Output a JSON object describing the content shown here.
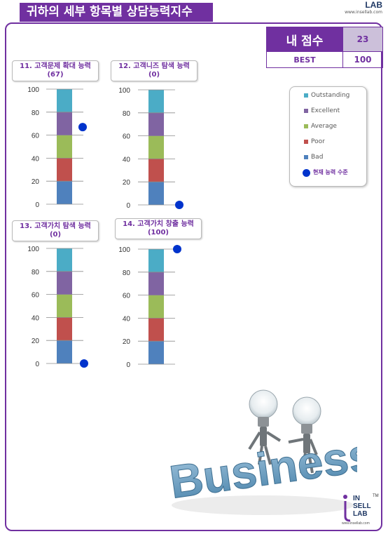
{
  "header": {
    "title": "귀하의 세부 항목별 상담능력지수"
  },
  "brand": {
    "name": "INSELL LAB",
    "lab_text": "LAB",
    "url": "www.insellab.com",
    "tm": "TM",
    "bottom_in": "IN",
    "bottom_sell": "SELL",
    "bottom_lab": "LAB",
    "bottom_url": "www.insellab.com"
  },
  "score": {
    "my_label": "내 점수",
    "my_value": "23",
    "best_label": "BEST",
    "best_value": "100"
  },
  "legend": {
    "items": [
      {
        "label": "Outstanding",
        "color": "#4bacc6"
      },
      {
        "label": "Excellent",
        "color": "#8064a2"
      },
      {
        "label": "Average",
        "color": "#9bbb59"
      },
      {
        "label": "Poor",
        "color": "#c0504d"
      },
      {
        "label": "Bad",
        "color": "#4f81bd"
      }
    ],
    "marker_label": "현재 능력 수준",
    "marker_color": "#0033cc"
  },
  "chart_data": [
    {
      "type": "bar",
      "title": "11. 고객문제 확대 능력",
      "subtitle": "(67)",
      "value": 67,
      "ylim": [
        0,
        100
      ],
      "ticks": [
        "100",
        "80",
        "60",
        "40",
        "20",
        "0"
      ]
    },
    {
      "type": "bar",
      "title": "12. 고객니즈 탐색 능력",
      "subtitle": "(0)",
      "value": 0,
      "ylim": [
        0,
        100
      ],
      "ticks": [
        "100",
        "80",
        "60",
        "40",
        "20",
        "0"
      ]
    },
    {
      "type": "bar",
      "title": "13. 고객가치 탐색 능력",
      "subtitle": "(0)",
      "value": 0,
      "ylim": [
        0,
        100
      ],
      "ticks": [
        "100",
        "80",
        "60",
        "40",
        "20",
        "0"
      ]
    },
    {
      "type": "bar",
      "title": "14. 고객가치 창출 능력",
      "subtitle": "(100)",
      "value": 100,
      "ylim": [
        0,
        100
      ],
      "ticks": [
        "100",
        "80",
        "60",
        "40",
        "20",
        "0"
      ]
    }
  ],
  "illustration": {
    "word": "Business"
  }
}
